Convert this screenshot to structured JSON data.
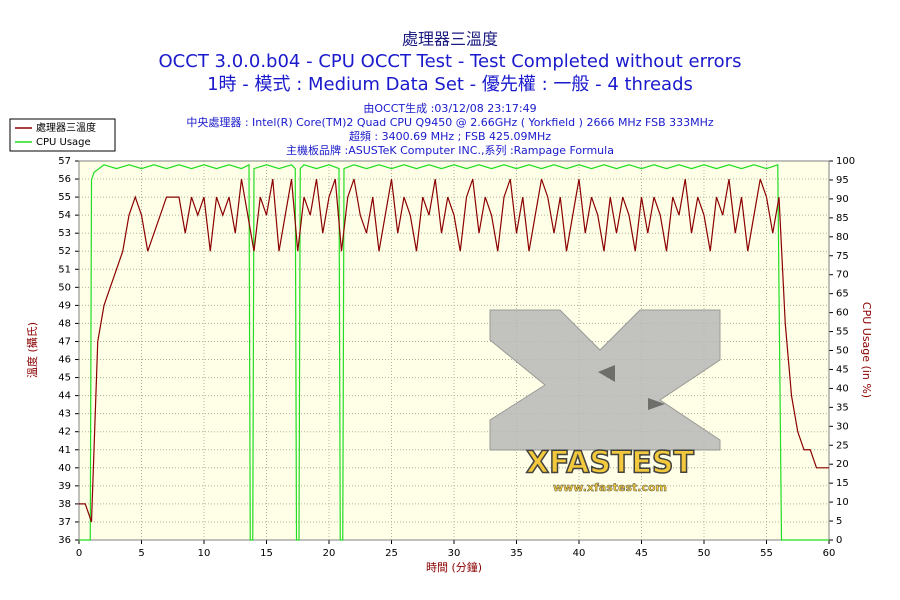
{
  "chart_data": {
    "type": "line",
    "title": "處理器三溫度",
    "subtitle": [
      "OCCT 3.0.0.b04 - CPU OCCT Test - Test Completed without errors",
      "1時 - 模式 : Medium Data Set - 優先權 : 一般 - 4 threads"
    ],
    "details": [
      "由OCCT生成 :03/12/08 23:17:49",
      "中央處理器 : Intel(R) Core(TM)2 Quad CPU Q9450 @ 2.66GHz ( Yorkfield ) 2666 MHz FSB 333MHz",
      "超頻 : 3400.69 MHz ; FSB 425.09MHz",
      "主機板品牌 :ASUSTeK Computer INC.,系列 :Rampage Formula"
    ],
    "x_label": "時間 (分鐘)",
    "y_label": "溫度 (攝氏)",
    "y2_label": "CPU Usage (in %)",
    "watermark": {
      "logo": "XFASTEST",
      "url": "www.xfastest.com"
    },
    "grid": true,
    "legend": "top-left",
    "xlim": [
      0,
      60
    ],
    "xticks": [
      0,
      5,
      10,
      15,
      20,
      25,
      30,
      35,
      40,
      45,
      50,
      55,
      60
    ],
    "ylim": [
      36,
      57
    ],
    "yticks": [
      36,
      37,
      38,
      39,
      40,
      41,
      42,
      43,
      44,
      45,
      46,
      47,
      48,
      49,
      50,
      51,
      52,
      53,
      54,
      55,
      56,
      57
    ],
    "y2lim": [
      0,
      100
    ],
    "y2ticks": [
      0,
      5,
      10,
      15,
      20,
      25,
      30,
      35,
      40,
      45,
      50,
      55,
      60,
      65,
      70,
      75,
      80,
      85,
      90,
      95,
      100
    ],
    "series": [
      {
        "name": "處理器三溫度",
        "color": "#8b0000",
        "x": [
          0,
          0.5,
          1,
          1.5,
          2,
          2.5,
          3,
          3.5,
          4,
          4.5,
          5,
          5.5,
          6,
          6.5,
          7,
          7.5,
          8,
          8.5,
          9,
          9.5,
          10,
          10.5,
          11,
          11.5,
          12,
          12.5,
          13,
          13.5,
          14,
          14.5,
          15,
          15.5,
          16,
          16.5,
          17,
          17.5,
          18,
          18.5,
          19,
          19.5,
          20,
          20.5,
          21,
          21.5,
          22,
          22.5,
          23,
          23.5,
          24,
          24.5,
          25,
          25.5,
          26,
          26.5,
          27,
          27.5,
          28,
          28.5,
          29,
          29.5,
          30,
          30.5,
          31,
          31.5,
          32,
          32.5,
          33,
          33.5,
          34,
          34.5,
          35,
          35.5,
          36,
          36.5,
          37,
          37.5,
          38,
          38.5,
          39,
          39.5,
          40,
          40.5,
          41,
          41.5,
          42,
          42.5,
          43,
          43.5,
          44,
          44.5,
          45,
          45.5,
          46,
          46.5,
          47,
          47.5,
          48,
          48.5,
          49,
          49.5,
          50,
          50.5,
          51,
          51.5,
          52,
          52.5,
          53,
          53.5,
          54,
          54.5,
          55,
          55.5,
          56,
          56.5,
          57,
          57.5,
          58,
          58.5,
          59,
          59.5,
          60
        ],
        "values": [
          38,
          38,
          37,
          47,
          49,
          50,
          51,
          52,
          54,
          55,
          54,
          52,
          53,
          54,
          55,
          55,
          55,
          53,
          55,
          54,
          55,
          52,
          55,
          54,
          55,
          53,
          56,
          54,
          52,
          55,
          54,
          56,
          52,
          54,
          56,
          52,
          55,
          54,
          56,
          53,
          55,
          56,
          52,
          55,
          56,
          54,
          53,
          55,
          52,
          54,
          56,
          53,
          55,
          54,
          52,
          55,
          54,
          56,
          53,
          55,
          54,
          52,
          55,
          56,
          53,
          55,
          54,
          52,
          55,
          56,
          53,
          55,
          52,
          54,
          56,
          55,
          53,
          55,
          52,
          54,
          56,
          53,
          55,
          54,
          52,
          55,
          53,
          55,
          54,
          52,
          55,
          53,
          55,
          54,
          52,
          55,
          54,
          56,
          53,
          55,
          54,
          52,
          55,
          54,
          56,
          53,
          55,
          52,
          54,
          56,
          55,
          53,
          55,
          48,
          44,
          42,
          41,
          41,
          40,
          40,
          40
        ]
      },
      {
        "name": "CPU Usage",
        "color": "#22dd22",
        "axis": "y2",
        "x": [
          0,
          0.9,
          1,
          1.2,
          2,
          3,
          4,
          5,
          6,
          7,
          8,
          9,
          10,
          11,
          12,
          13,
          13.6,
          13.7,
          13.9,
          14,
          15,
          16,
          17,
          17.3,
          17.4,
          17.6,
          17.7,
          18,
          19,
          20,
          20.8,
          20.9,
          21.1,
          21.2,
          22,
          23,
          24,
          25,
          26,
          27,
          28,
          29,
          30,
          31,
          32,
          33,
          34,
          35,
          36,
          37,
          38,
          39,
          40,
          41,
          42,
          43,
          44,
          45,
          46,
          47,
          48,
          49,
          50,
          51,
          52,
          53,
          54,
          55,
          55.9,
          56.2,
          57,
          58,
          59,
          60
        ],
        "values": [
          0,
          0,
          95,
          97,
          99,
          98,
          99,
          98,
          99,
          98,
          99,
          98,
          99,
          98,
          99,
          98,
          99,
          0,
          0,
          98,
          99,
          98,
          99,
          98,
          0,
          0,
          98,
          99,
          98,
          99,
          98,
          0,
          0,
          98,
          99,
          98,
          99,
          98,
          99,
          98,
          99,
          98,
          99,
          98,
          99,
          98,
          99,
          98,
          99,
          98,
          99,
          98,
          99,
          98,
          99,
          98,
          99,
          98,
          99,
          98,
          99,
          98,
          99,
          98,
          99,
          98,
          99,
          98,
          99,
          0,
          0,
          0,
          0,
          0
        ]
      }
    ]
  }
}
